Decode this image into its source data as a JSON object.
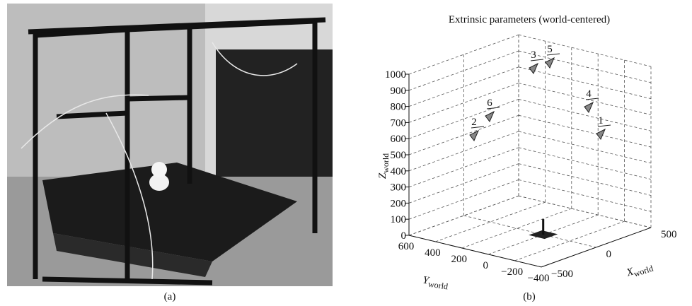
{
  "figure": {
    "panels": [
      {
        "caption": "(a)"
      },
      {
        "caption": "(b)",
        "title": "Extrinsic parameters (world-centered)",
        "zlabel": {
          "symbol": "Z",
          "subscript": "world"
        },
        "ylabel": {
          "symbol": "Y",
          "subscript": "world"
        },
        "xlabel": {
          "symbol": "X",
          "subscript": "world"
        },
        "zticks": [
          0,
          100,
          200,
          300,
          400,
          500,
          600,
          700,
          800,
          900,
          1000
        ],
        "yticks": [
          600,
          400,
          200,
          0,
          {
            "value": -200,
            "label": "−200"
          },
          {
            "value": -400,
            "label": "−400"
          }
        ],
        "xticks": [
          {
            "value": -500,
            "label": "−500"
          },
          0,
          500
        ],
        "cameras": [
          "1",
          "2",
          "3",
          "4",
          "5",
          "6"
        ]
      }
    ]
  }
}
